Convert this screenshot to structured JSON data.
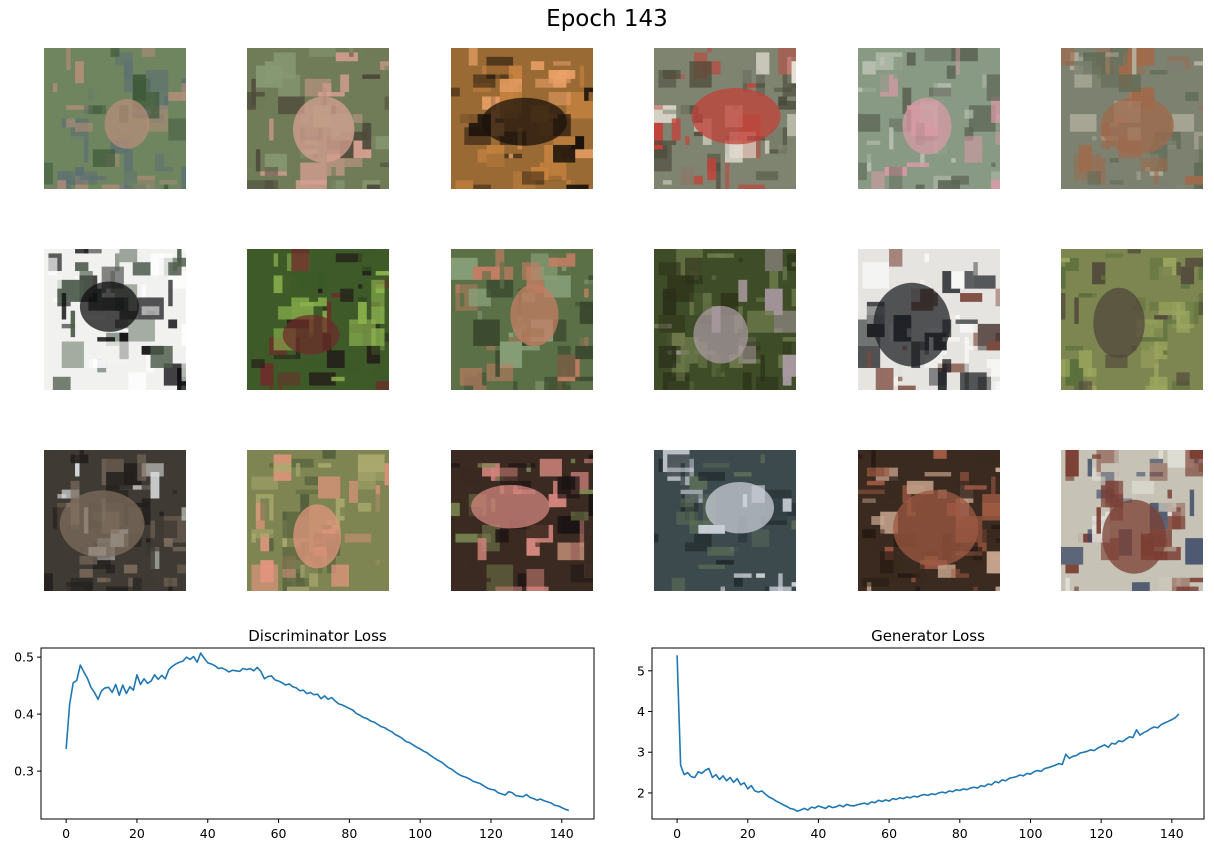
{
  "figure": {
    "title": "Epoch 143"
  },
  "samples": {
    "rows": 3,
    "cols": 6,
    "tiles": [
      {
        "bg": "#6f8560",
        "a": "#b58e79",
        "b": "#5b6f73",
        "c": "#3f5a3b"
      },
      {
        "bg": "#707b57",
        "a": "#d7a092",
        "b": "#4e4a3b",
        "c": "#879972"
      },
      {
        "bg": "#9a6a35",
        "a": "#1c130b",
        "b": "#e9a167",
        "c": "#c4823f"
      },
      {
        "bg": "#7f8471",
        "a": "#c2423a",
        "b": "#e6e1d6",
        "c": "#4b4b3a"
      },
      {
        "bg": "#899a84",
        "a": "#d79aa6",
        "b": "#b8bfb0",
        "c": "#5c6454"
      },
      {
        "bg": "#7c8170",
        "a": "#9f6a4c",
        "b": "#b5b19f",
        "c": "#5f6a55"
      },
      {
        "bg": "#f1f1ef",
        "a": "#101012",
        "b": "#ffffff",
        "c": "#4c5b4b"
      },
      {
        "bg": "#3d5a28",
        "a": "#6c2e29",
        "b": "#8bb14e",
        "c": "#241f19"
      },
      {
        "bg": "#5c7048",
        "a": "#c37d63",
        "b": "#889f79",
        "c": "#3a482e"
      },
      {
        "bg": "#3e4d28",
        "a": "#a8989f",
        "b": "#6d7a4b",
        "c": "#2b3018"
      },
      {
        "bg": "#e6e4e0",
        "a": "#1f2226",
        "b": "#f7f7f5",
        "c": "#7d4a3d"
      },
      {
        "bg": "#7d8650",
        "a": "#51473b",
        "b": "#9ca75f",
        "c": "#5b6f3c"
      },
      {
        "bg": "#3f3a34",
        "a": "#7d6d5e",
        "b": "#d9dcdc",
        "c": "#221f1d"
      },
      {
        "bg": "#7e8552",
        "a": "#e2957e",
        "b": "#a9a96e",
        "c": "#55603c"
      },
      {
        "bg": "#3b2a21",
        "a": "#d2857d",
        "b": "#7a8752",
        "c": "#1c1414"
      },
      {
        "bg": "#3c4a4e",
        "a": "#c9ced6",
        "b": "#5b6d57",
        "c": "#222b2e"
      },
      {
        "bg": "#3a2a1f",
        "a": "#9e5a43",
        "b": "#c5a38c",
        "c": "#231811"
      },
      {
        "bg": "#c6c2b5",
        "a": "#7b3f34",
        "b": "#e2e2da",
        "c": "#3d4a66"
      }
    ]
  },
  "chart_data": [
    {
      "type": "line",
      "title": "Discriminator Loss",
      "xlabel": "",
      "ylabel": "",
      "xlim": [
        -7.1,
        149.1
      ],
      "ylim": [
        0.216,
        0.516
      ],
      "xticks": [
        0,
        20,
        40,
        60,
        80,
        100,
        120,
        140
      ],
      "yticks": [
        0.3,
        0.4,
        0.5
      ],
      "ytick_labels": [
        "0.3",
        "0.4",
        "0.5"
      ],
      "grid": false,
      "x": [
        0,
        1,
        2,
        3,
        4,
        5,
        6,
        7,
        8,
        9,
        10,
        11,
        12,
        13,
        14,
        15,
        16,
        17,
        18,
        19,
        20,
        21,
        22,
        23,
        24,
        25,
        26,
        27,
        28,
        29,
        30,
        31,
        32,
        33,
        34,
        35,
        36,
        37,
        38,
        39,
        40,
        41,
        42,
        43,
        44,
        45,
        46,
        47,
        48,
        49,
        50,
        51,
        52,
        53,
        54,
        55,
        56,
        57,
        58,
        59,
        60,
        61,
        62,
        63,
        64,
        65,
        66,
        67,
        68,
        69,
        70,
        71,
        72,
        73,
        74,
        75,
        76,
        77,
        78,
        79,
        80,
        81,
        82,
        83,
        84,
        85,
        86,
        87,
        88,
        89,
        90,
        91,
        92,
        93,
        94,
        95,
        96,
        97,
        98,
        99,
        100,
        101,
        102,
        103,
        104,
        105,
        106,
        107,
        108,
        109,
        110,
        111,
        112,
        113,
        114,
        115,
        116,
        117,
        118,
        119,
        120,
        121,
        122,
        123,
        124,
        125,
        126,
        127,
        128,
        129,
        130,
        131,
        132,
        133,
        134,
        135,
        136,
        137,
        138,
        139,
        140,
        141,
        142
      ],
      "series": [
        {
          "name": "",
          "color": "#1f77b4",
          "values": [
            0.339,
            0.418,
            0.455,
            0.459,
            0.486,
            0.474,
            0.463,
            0.447,
            0.438,
            0.426,
            0.441,
            0.446,
            0.447,
            0.438,
            0.452,
            0.433,
            0.451,
            0.436,
            0.448,
            0.442,
            0.469,
            0.452,
            0.462,
            0.454,
            0.458,
            0.469,
            0.461,
            0.468,
            0.462,
            0.478,
            0.484,
            0.488,
            0.491,
            0.493,
            0.5,
            0.496,
            0.501,
            0.491,
            0.507,
            0.498,
            0.49,
            0.488,
            0.485,
            0.48,
            0.481,
            0.478,
            0.474,
            0.477,
            0.476,
            0.475,
            0.48,
            0.478,
            0.48,
            0.476,
            0.482,
            0.475,
            0.462,
            0.466,
            0.467,
            0.46,
            0.458,
            0.455,
            0.451,
            0.453,
            0.448,
            0.446,
            0.441,
            0.442,
            0.436,
            0.438,
            0.434,
            0.435,
            0.427,
            0.432,
            0.426,
            0.429,
            0.423,
            0.418,
            0.416,
            0.413,
            0.41,
            0.407,
            0.401,
            0.398,
            0.394,
            0.392,
            0.388,
            0.386,
            0.382,
            0.378,
            0.376,
            0.372,
            0.369,
            0.364,
            0.361,
            0.357,
            0.352,
            0.35,
            0.346,
            0.342,
            0.339,
            0.335,
            0.332,
            0.327,
            0.323,
            0.319,
            0.316,
            0.311,
            0.306,
            0.303,
            0.298,
            0.294,
            0.291,
            0.289,
            0.286,
            0.282,
            0.28,
            0.278,
            0.274,
            0.27,
            0.268,
            0.267,
            0.262,
            0.26,
            0.258,
            0.264,
            0.262,
            0.257,
            0.256,
            0.255,
            0.259,
            0.254,
            0.252,
            0.249,
            0.251,
            0.248,
            0.246,
            0.244,
            0.24,
            0.239,
            0.236,
            0.233,
            0.231
          ]
        }
      ]
    },
    {
      "type": "line",
      "title": "Generator Loss",
      "xlabel": "",
      "ylabel": "",
      "xlim": [
        -7.1,
        149.1
      ],
      "ylim": [
        1.36,
        5.56
      ],
      "xticks": [
        0,
        20,
        40,
        60,
        80,
        100,
        120,
        140
      ],
      "yticks": [
        2,
        3,
        4,
        5
      ],
      "ytick_labels": [
        "2",
        "3",
        "4",
        "5"
      ],
      "grid": false,
      "x": [
        0,
        1,
        2,
        3,
        4,
        5,
        6,
        7,
        8,
        9,
        10,
        11,
        12,
        13,
        14,
        15,
        16,
        17,
        18,
        19,
        20,
        21,
        22,
        23,
        24,
        25,
        26,
        27,
        28,
        29,
        30,
        31,
        32,
        33,
        34,
        35,
        36,
        37,
        38,
        39,
        40,
        41,
        42,
        43,
        44,
        45,
        46,
        47,
        48,
        49,
        50,
        51,
        52,
        53,
        54,
        55,
        56,
        57,
        58,
        59,
        60,
        61,
        62,
        63,
        64,
        65,
        66,
        67,
        68,
        69,
        70,
        71,
        72,
        73,
        74,
        75,
        76,
        77,
        78,
        79,
        80,
        81,
        82,
        83,
        84,
        85,
        86,
        87,
        88,
        89,
        90,
        91,
        92,
        93,
        94,
        95,
        96,
        97,
        98,
        99,
        100,
        101,
        102,
        103,
        104,
        105,
        106,
        107,
        108,
        109,
        110,
        111,
        112,
        113,
        114,
        115,
        116,
        117,
        118,
        119,
        120,
        121,
        122,
        123,
        124,
        125,
        126,
        127,
        128,
        129,
        130,
        131,
        132,
        133,
        134,
        135,
        136,
        137,
        138,
        139,
        140,
        141,
        142
      ],
      "series": [
        {
          "name": "",
          "color": "#1f77b4",
          "values": [
            5.38,
            2.68,
            2.45,
            2.5,
            2.4,
            2.38,
            2.52,
            2.48,
            2.56,
            2.6,
            2.38,
            2.45,
            2.33,
            2.42,
            2.3,
            2.38,
            2.26,
            2.35,
            2.2,
            2.25,
            2.1,
            2.18,
            2.05,
            2.02,
            2.05,
            1.97,
            1.9,
            1.86,
            1.8,
            1.76,
            1.71,
            1.67,
            1.62,
            1.6,
            1.55,
            1.58,
            1.62,
            1.58,
            1.65,
            1.63,
            1.68,
            1.65,
            1.62,
            1.68,
            1.64,
            1.66,
            1.7,
            1.66,
            1.72,
            1.69,
            1.68,
            1.71,
            1.73,
            1.75,
            1.72,
            1.78,
            1.76,
            1.82,
            1.79,
            1.83,
            1.8,
            1.86,
            1.84,
            1.88,
            1.86,
            1.9,
            1.88,
            1.92,
            1.9,
            1.94,
            1.96,
            1.94,
            1.98,
            1.96,
            2.0,
            2.02,
            2.0,
            2.05,
            2.03,
            2.08,
            2.06,
            2.1,
            2.08,
            2.12,
            2.14,
            2.12,
            2.18,
            2.16,
            2.22,
            2.2,
            2.28,
            2.25,
            2.32,
            2.3,
            2.36,
            2.38,
            2.4,
            2.44,
            2.42,
            2.48,
            2.46,
            2.52,
            2.55,
            2.53,
            2.6,
            2.62,
            2.65,
            2.68,
            2.72,
            2.7,
            2.95,
            2.85,
            2.9,
            2.92,
            2.98,
            3.0,
            3.02,
            3.06,
            3.04,
            3.1,
            3.14,
            3.18,
            3.12,
            3.22,
            3.2,
            3.28,
            3.26,
            3.32,
            3.38,
            3.36,
            3.55,
            3.42,
            3.48,
            3.52,
            3.58,
            3.62,
            3.6,
            3.68,
            3.72,
            3.76,
            3.8,
            3.85,
            3.94
          ]
        }
      ]
    }
  ]
}
